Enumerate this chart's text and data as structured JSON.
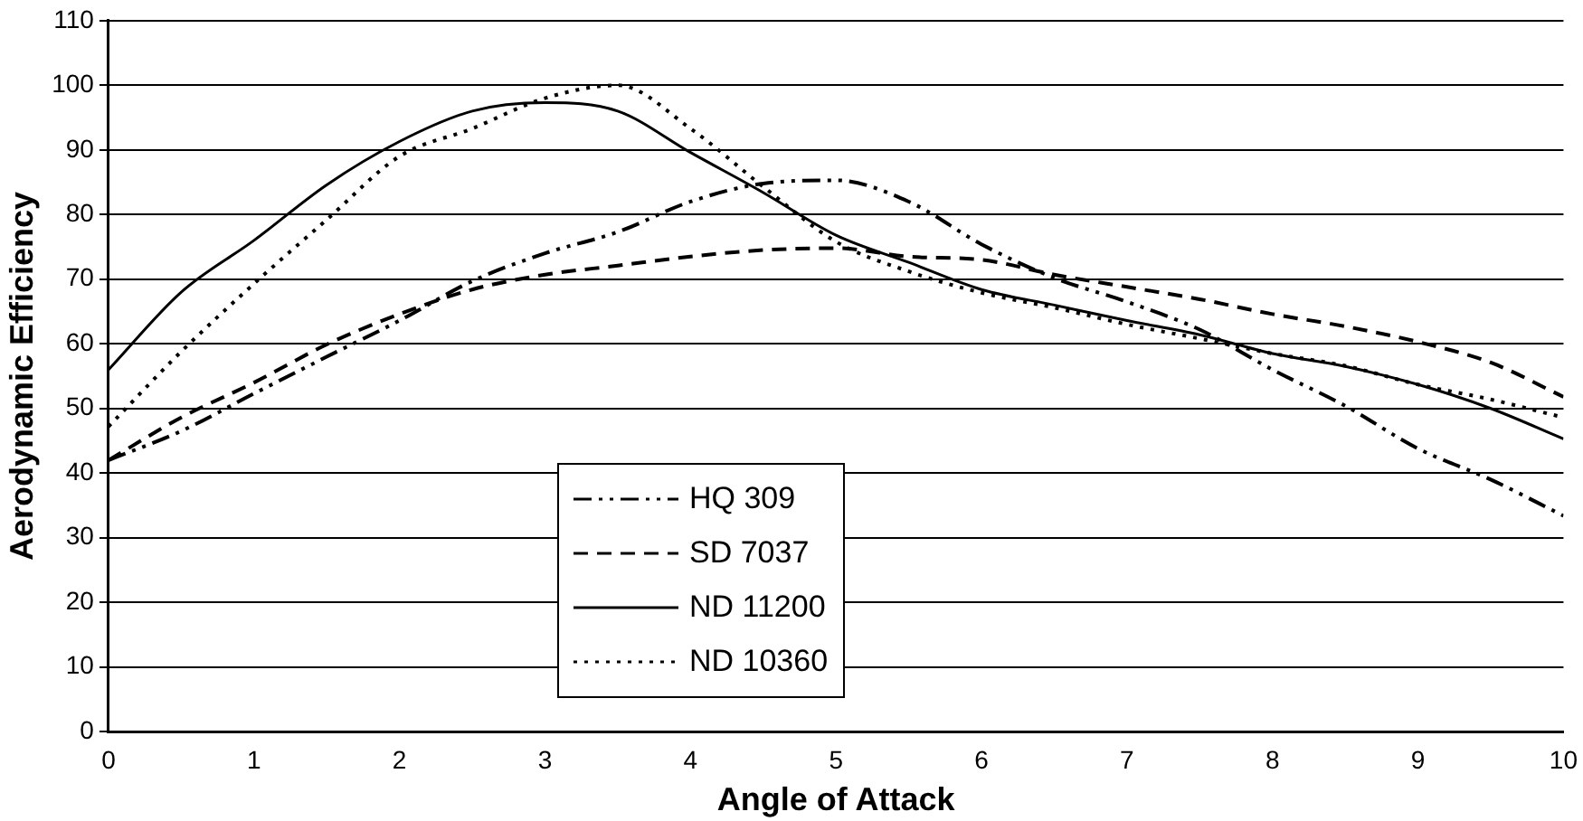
{
  "chart_data": {
    "type": "line",
    "xlabel": "Angle of Attack",
    "ylabel": "Aerodynamic Efficiency",
    "x": [
      0,
      0.5,
      1,
      1.5,
      2,
      2.5,
      3,
      3.5,
      4,
      4.5,
      5,
      5.5,
      6,
      6.5,
      7,
      7.5,
      8,
      8.5,
      9,
      9.5,
      10
    ],
    "series": [
      {
        "name": "HQ 309",
        "color": "#000000",
        "line_style": "dashdot",
        "values": [
          42,
          46.5,
          52.3,
          58,
          63.6,
          69.7,
          74,
          77.3,
          82,
          84.8,
          85.3,
          82,
          75.4,
          70.2,
          66.5,
          62.2,
          56,
          50.4,
          43.8,
          39,
          33.4
        ]
      },
      {
        "name": "SD 7037",
        "color": "#000000",
        "line_style": "dashed",
        "values": [
          42,
          48.6,
          54,
          59.9,
          64.6,
          68.4,
          70.7,
          72.1,
          73.5,
          74.5,
          74.8,
          73.5,
          73,
          70.7,
          68.8,
          66.9,
          64.6,
          62.7,
          60.3,
          57.1,
          51.8
        ]
      },
      {
        "name": "ND 11200",
        "color": "#000000",
        "line_style": "solid",
        "values": [
          56,
          68,
          76,
          84.6,
          91.3,
          96,
          97.3,
          96,
          89.6,
          83.4,
          76.8,
          72.6,
          68.4,
          66,
          63.6,
          61.4,
          58.5,
          56.5,
          53.7,
          50,
          45.3
        ]
      },
      {
        "name": "ND 10360",
        "color": "#000000",
        "line_style": "dotted",
        "values": [
          47.2,
          58.8,
          69.3,
          79.2,
          89,
          93.3,
          98,
          100,
          93.3,
          84.3,
          75.8,
          71.2,
          67.9,
          65.6,
          63,
          60.8,
          58.5,
          56.6,
          53.7,
          51.4,
          48.6
        ]
      }
    ],
    "xlim": [
      0,
      10
    ],
    "xticks": [
      0,
      1,
      2,
      3,
      4,
      5,
      6,
      7,
      8,
      9,
      10
    ],
    "ylim": [
      0,
      110
    ],
    "yticks": [
      0,
      10,
      20,
      30,
      40,
      50,
      60,
      70,
      80,
      90,
      100,
      110
    ],
    "grid": "y",
    "legend": "bottom",
    "marker": "none"
  }
}
